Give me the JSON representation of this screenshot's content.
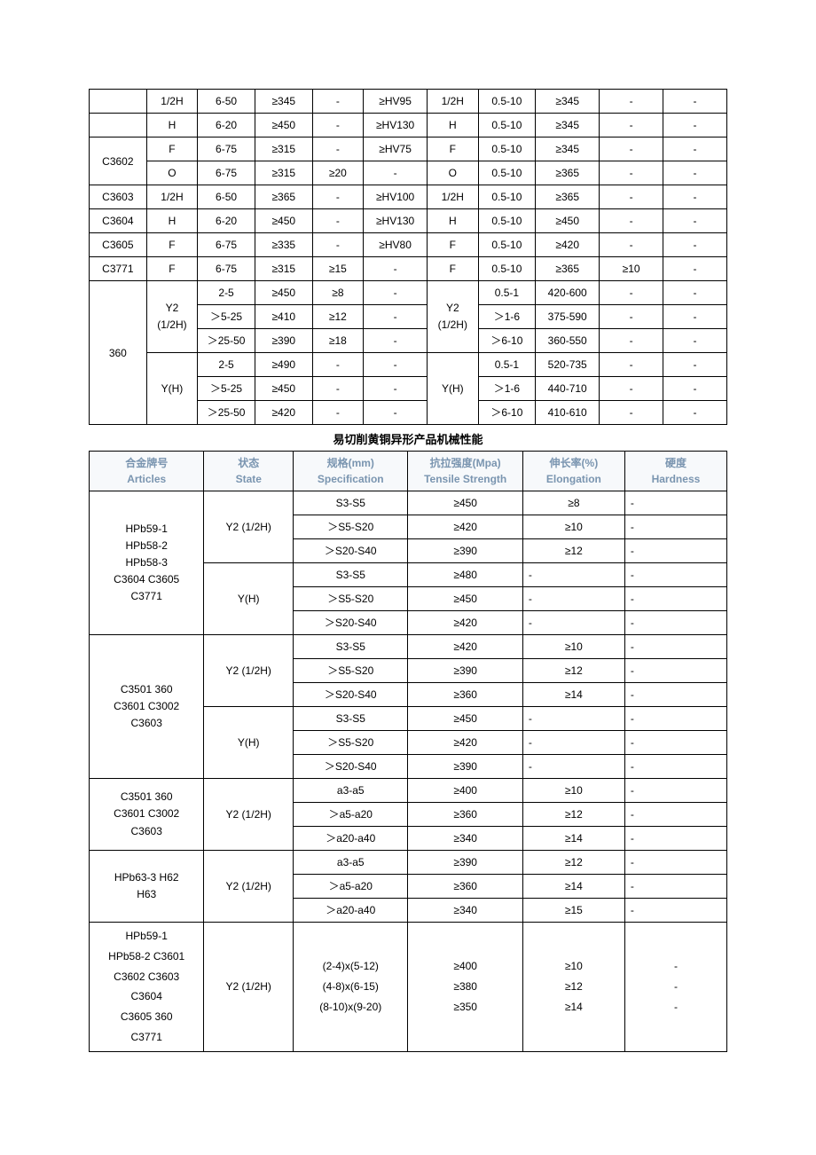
{
  "table1": {
    "rows": [
      {
        "c": [
          "",
          "1/2H",
          "6-50",
          "≥345",
          "-",
          "≥HV95",
          "1/2H",
          "0.5-10",
          "≥345",
          "-",
          "-"
        ]
      },
      {
        "c": [
          "",
          "H",
          "6-20",
          "≥450",
          "-",
          "≥HV130",
          "H",
          "0.5-10",
          "≥345",
          "-",
          "-"
        ]
      },
      {
        "c": [
          "C3602",
          "F",
          "6-75",
          "≥315",
          "-",
          "≥HV75",
          "F",
          "0.5-10",
          "≥345",
          "-",
          "-"
        ],
        "rs0": 2
      },
      {
        "c": [
          "O",
          "6-75",
          "≥315",
          "≥20",
          "-",
          "O",
          "0.5-10",
          "≥365",
          "-",
          "-"
        ]
      },
      {
        "c": [
          "C3603",
          "1/2H",
          "6-50",
          "≥365",
          "-",
          "≥HV100",
          "1/2H",
          "0.5-10",
          "≥365",
          "-",
          "-"
        ]
      },
      {
        "c": [
          "C3604",
          "H",
          "6-20",
          "≥450",
          "-",
          "≥HV130",
          "H",
          "0.5-10",
          "≥450",
          "-",
          "-"
        ]
      },
      {
        "c": [
          "C3605",
          "F",
          "6-75",
          "≥335",
          "-",
          "≥HV80",
          "F",
          "0.5-10",
          "≥420",
          "-",
          "-"
        ]
      },
      {
        "c": [
          "C3771",
          "F",
          "6-75",
          "≥315",
          "≥15",
          "-",
          "F",
          "0.5-10",
          "≥365",
          "≥10",
          "-"
        ]
      }
    ],
    "big": {
      "article": "360",
      "state1_cn": "Y2",
      "state1_sub": "(1/2H)",
      "state2": "Y(H)",
      "state1r_cn": "Y2",
      "state1r_sub": "(1/2H)",
      "state2r": "Y(H)",
      "block": [
        [
          "2-5",
          "≥450",
          "≥8",
          "-",
          "0.5-1",
          "420-600",
          "-",
          "-"
        ],
        [
          "＞5-25",
          "≥410",
          "≥12",
          "-",
          "＞1-6",
          "375-590",
          "-",
          "-"
        ],
        [
          "＞25-50",
          "≥390",
          "≥18",
          "-",
          "＞6-10",
          "360-550",
          "-",
          "-"
        ],
        [
          "2-5",
          "≥490",
          "-",
          "-",
          "0.5-1",
          "520-735",
          "-",
          "-"
        ],
        [
          "＞5-25",
          "≥450",
          "-",
          "-",
          "＞1-6",
          "440-710",
          "-",
          "-"
        ],
        [
          "＞25-50",
          "≥420",
          "-",
          "-",
          "＞6-10",
          "410-610",
          "-",
          "-"
        ]
      ]
    }
  },
  "section_title": "易切削黄铜异形产品机械性能",
  "table2": {
    "headers": {
      "c1_cn": "合金牌号",
      "c1_en": "Articles",
      "c2_cn": "状态",
      "c2_en": "State",
      "c3_cn": "规格(mm)",
      "c3_en": "Specification",
      "c4_cn": "抗拉强度(Mpa)",
      "c4_en": "Tensile Strength",
      "c5_cn": "伸长率(%)",
      "c5_en": "Elongation",
      "c6_cn": "硬度",
      "c6_en": "Hardness"
    },
    "g1": {
      "article": "HPb59-1\nHPb58-2\nHPb58-3\nC3604 C3605\nC3771",
      "state1": "Y2 (1/2H)",
      "state2": "Y(H)",
      "r": [
        [
          "S3-S5",
          "≥450",
          "≥8",
          "-"
        ],
        [
          "＞S5-S20",
          "≥420",
          "≥10",
          "-"
        ],
        [
          "＞S20-S40",
          "≥390",
          "≥12",
          "-"
        ],
        [
          "S3-S5",
          "≥480",
          "-",
          "-"
        ],
        [
          "＞S5-S20",
          "≥450",
          "-",
          "-"
        ],
        [
          "＞S20-S40",
          "≥420",
          "-",
          "-"
        ]
      ]
    },
    "g2": {
      "article": "C3501 360\nC3601 C3002\nC3603",
      "state1": "Y2 (1/2H)",
      "state2": "Y(H)",
      "r": [
        [
          "S3-S5",
          "≥420",
          "≥10",
          "-"
        ],
        [
          "＞S5-S20",
          "≥390",
          "≥12",
          "-"
        ],
        [
          "＞S20-S40",
          "≥360",
          "≥14",
          "-"
        ],
        [
          "S3-S5",
          "≥450",
          "-",
          "-"
        ],
        [
          "＞S5-S20",
          "≥420",
          "-",
          "-"
        ],
        [
          "＞S20-S40",
          "≥390",
          "-",
          "-"
        ]
      ]
    },
    "g3": {
      "article": "C3501 360\nC3601 C3002\nC3603",
      "state1": "Y2 (1/2H)",
      "r": [
        [
          "a3-a5",
          "≥400",
          "≥10",
          "-"
        ],
        [
          "＞a5-a20",
          "≥360",
          "≥12",
          "-"
        ],
        [
          "＞a20-a40",
          "≥340",
          "≥14",
          "-"
        ]
      ]
    },
    "g4": {
      "article": "HPb63-3 H62\nH63",
      "state1": "Y2 (1/2H)",
      "r": [
        [
          "a3-a5",
          "≥390",
          "≥12",
          "-"
        ],
        [
          "＞a5-a20",
          "≥360",
          "≥14",
          "-"
        ],
        [
          "＞a20-a40",
          "≥340",
          "≥15",
          "-"
        ]
      ]
    },
    "g5": {
      "article": "HPb59-1\nHPb58-2 C3601\nC3602 C3603\nC3604\nC3605 360\nC3771",
      "state1": "Y2 (1/2H)",
      "r": [
        [
          "(2-4)x(5-12)",
          "≥400",
          "≥10",
          "-"
        ],
        [
          "(4-8)x(6-15)",
          "≥380",
          "≥12",
          "-"
        ],
        [
          "(8-10)x(9-20)",
          "≥350",
          "≥14",
          "-"
        ]
      ]
    }
  }
}
